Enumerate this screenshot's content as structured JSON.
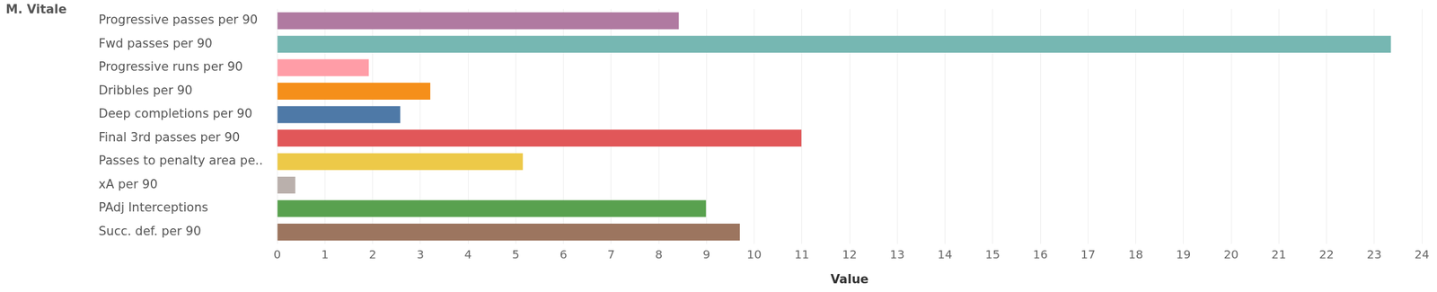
{
  "chart_data": {
    "type": "bar",
    "title": "M. Vitale",
    "orientation": "horizontal",
    "categories": [
      "Progressive passes per 90",
      "Fwd passes per 90",
      "Progressive runs per 90",
      "Dribbles per 90",
      "Deep completions per 90",
      "Final 3rd passes per 90",
      "Passes to penalty area pe..",
      "xA per 90",
      "PAdj Interceptions",
      "Succ. def. per 90"
    ],
    "values": [
      8.42,
      23.35,
      1.92,
      3.21,
      2.58,
      10.99,
      5.15,
      0.38,
      8.99,
      9.7
    ],
    "colors": [
      "#b07aa1",
      "#76b7b2",
      "#ff9da7",
      "#f58f1a",
      "#4e79a7",
      "#e15759",
      "#edc948",
      "#bab0ac",
      "#59a14f",
      "#9c755f"
    ],
    "xlabel": "Value",
    "xlim": [
      0,
      24
    ],
    "xticks": [
      0,
      1,
      2,
      3,
      4,
      5,
      6,
      7,
      8,
      9,
      10,
      11,
      12,
      13,
      14,
      15,
      16,
      17,
      18,
      19,
      20,
      21,
      22,
      23,
      24
    ],
    "grid": true
  }
}
